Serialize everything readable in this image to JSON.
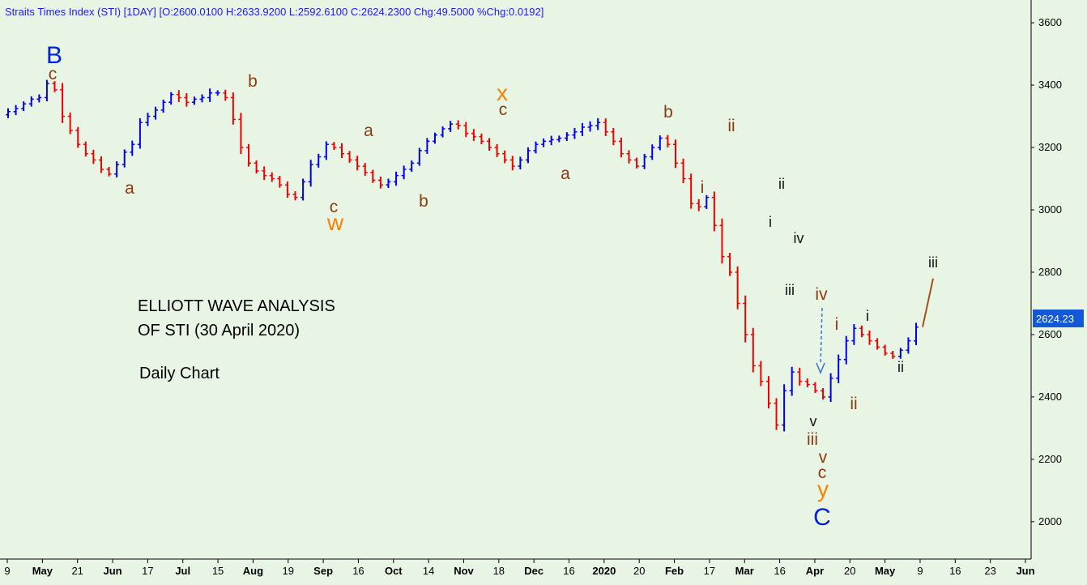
{
  "header": "Straits Times Index (STI) [1DAY] [O:2600.0100 H:2633.9200 L:2592.6100 C:2624.2300 Chg:49.5000 %Chg:0.0192]",
  "annotation": {
    "line1": "ELLIOTT WAVE ANALYSIS",
    "line2": "OF STI (30 April 2020)",
    "line3": "Daily Chart"
  },
  "last_price_label": "2624.23",
  "colors": {
    "background": "#e9f5e4",
    "up_bar": "#0000ee",
    "down_bar": "#ee0000",
    "header": "#1a1aff",
    "wave_brown": "#8b3a0f",
    "wave_orange": "#ff7f00",
    "wave_blue": "#0022dd",
    "wave_black": "#111111",
    "projection": "#a0521d",
    "arrow": "#3a6fd8"
  },
  "chart_data": {
    "type": "ohlc",
    "title": "Straits Times Index (STI) [1DAY]",
    "ylim": [
      1880,
      3660
    ],
    "y_ticks": [
      2000,
      2200,
      2400,
      2600,
      2800,
      3000,
      3200,
      3400,
      3600
    ],
    "x_ticks": [
      {
        "label": "9",
        "bold": false
      },
      {
        "label": "May",
        "bold": true
      },
      {
        "label": "21",
        "bold": false
      },
      {
        "label": "Jun",
        "bold": true
      },
      {
        "label": "17",
        "bold": false
      },
      {
        "label": "Jul",
        "bold": true
      },
      {
        "label": "15",
        "bold": false
      },
      {
        "label": "Aug",
        "bold": true
      },
      {
        "label": "19",
        "bold": false
      },
      {
        "label": "Sep",
        "bold": true
      },
      {
        "label": "16",
        "bold": false
      },
      {
        "label": "Oct",
        "bold": true
      },
      {
        "label": "14",
        "bold": false
      },
      {
        "label": "Nov",
        "bold": true
      },
      {
        "label": "18",
        "bold": false
      },
      {
        "label": "Dec",
        "bold": true
      },
      {
        "label": "16",
        "bold": false
      },
      {
        "label": "2020",
        "bold": true
      },
      {
        "label": "20",
        "bold": false
      },
      {
        "label": "Feb",
        "bold": true
      },
      {
        "label": "17",
        "bold": false
      },
      {
        "label": "Mar",
        "bold": true
      },
      {
        "label": "16",
        "bold": false
      },
      {
        "label": "Apr",
        "bold": true
      },
      {
        "label": "20",
        "bold": false
      },
      {
        "label": "May",
        "bold": true
      },
      {
        "label": "9",
        "bold": false
      },
      {
        "label": "16",
        "bold": false
      },
      {
        "label": "23",
        "bold": false
      },
      {
        "label": "Jun",
        "bold": true
      }
    ],
    "last_close": 2624.23,
    "price_path": [
      3315,
      3325,
      3340,
      3355,
      3360,
      3405,
      3385,
      3300,
      3255,
      3210,
      3180,
      3160,
      3130,
      3115,
      3145,
      3185,
      3210,
      3280,
      3300,
      3320,
      3345,
      3370,
      3360,
      3345,
      3355,
      3360,
      3375,
      3375,
      3360,
      3290,
      3200,
      3150,
      3125,
      3110,
      3100,
      3080,
      3050,
      3040,
      3090,
      3145,
      3170,
      3210,
      3200,
      3180,
      3160,
      3140,
      3120,
      3095,
      3080,
      3090,
      3110,
      3130,
      3150,
      3190,
      3220,
      3240,
      3260,
      3275,
      3270,
      3245,
      3235,
      3220,
      3200,
      3180,
      3160,
      3140,
      3160,
      3190,
      3210,
      3220,
      3225,
      3230,
      3240,
      3250,
      3265,
      3270,
      3280,
      3250,
      3220,
      3180,
      3160,
      3140,
      3170,
      3200,
      3230,
      3210,
      3150,
      3100,
      3020,
      3010,
      3040,
      2950,
      2850,
      2800,
      2700,
      2600,
      2500,
      2450,
      2380,
      2310,
      2420,
      2480,
      2450,
      2440,
      2420,
      2400,
      2460,
      2520,
      2580,
      2620,
      2600,
      2580,
      2560,
      2540,
      2530,
      2550,
      2580,
      2624
    ],
    "projection": [
      2624,
      2780
    ],
    "waves": [
      {
        "text": "B",
        "color": "blue",
        "size": "xl"
      },
      {
        "text": "c",
        "color": "brown",
        "size": "m"
      },
      {
        "text": "a",
        "color": "brown",
        "size": "m"
      },
      {
        "text": "b",
        "color": "brown",
        "size": "m"
      },
      {
        "text": "c",
        "color": "brown",
        "size": "m"
      },
      {
        "text": "w",
        "color": "orange",
        "size": "l"
      },
      {
        "text": "a",
        "color": "brown",
        "size": "m"
      },
      {
        "text": "b",
        "color": "brown",
        "size": "m"
      },
      {
        "text": "x",
        "color": "orange",
        "size": "l"
      },
      {
        "text": "c",
        "color": "brown",
        "size": "m"
      },
      {
        "text": "a",
        "color": "brown",
        "size": "m"
      },
      {
        "text": "b",
        "color": "brown",
        "size": "m"
      },
      {
        "text": "i",
        "color": "brown",
        "size": "m"
      },
      {
        "text": "ii",
        "color": "brown",
        "size": "m"
      },
      {
        "text": "ii",
        "color": "black",
        "size": "s"
      },
      {
        "text": "i",
        "color": "black",
        "size": "s"
      },
      {
        "text": "iv",
        "color": "black",
        "size": "s"
      },
      {
        "text": "iii",
        "color": "black",
        "size": "s"
      },
      {
        "text": "iv",
        "color": "brown",
        "size": "m"
      },
      {
        "text": "v",
        "color": "black",
        "size": "s"
      },
      {
        "text": "iii",
        "color": "brown",
        "size": "m"
      },
      {
        "text": "v",
        "color": "brown",
        "size": "m"
      },
      {
        "text": "c",
        "color": "brown",
        "size": "m"
      },
      {
        "text": "y",
        "color": "orange",
        "size": "l"
      },
      {
        "text": "C",
        "color": "blue",
        "size": "xl"
      },
      {
        "text": "i",
        "color": "brown",
        "size": "m"
      },
      {
        "text": "ii",
        "color": "brown",
        "size": "m"
      },
      {
        "text": "i",
        "color": "black",
        "size": "s"
      },
      {
        "text": "ii",
        "color": "black",
        "size": "s"
      },
      {
        "text": "iii",
        "color": "black",
        "size": "s"
      }
    ]
  }
}
